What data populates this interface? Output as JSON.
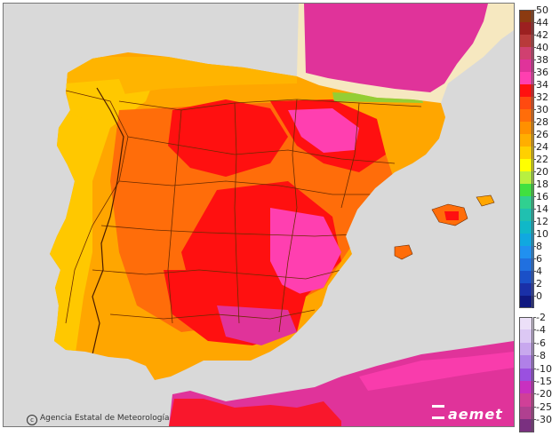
{
  "map": {
    "credit_text": "Agencia Estatal de Meteorología",
    "logo_text": "aemet",
    "colors": {
      "sea": "#d9d9d9",
      "france": "#f6e8c0",
      "extreme": "#e0339a",
      "hot": "#ff1010",
      "warm": "#ff6d0a",
      "mild": "#ffa600",
      "cool": "#ffc800",
      "mountain_green": "#66e04a",
      "borders": "#6b2b00"
    }
  },
  "legend": {
    "upper": [
      {
        "label": "50",
        "color": "#8b3a10"
      },
      {
        "label": "44",
        "color": "#9c2020"
      },
      {
        "label": "42",
        "color": "#b83a3a"
      },
      {
        "label": "40",
        "color": "#d04070"
      },
      {
        "label": "38",
        "color": "#e0339a"
      },
      {
        "label": "36",
        "color": "#ff3fb0"
      },
      {
        "label": "34",
        "color": "#ff1010"
      },
      {
        "label": "32",
        "color": "#ff4a10"
      },
      {
        "label": "30",
        "color": "#ff6d0a"
      },
      {
        "label": "28",
        "color": "#ff9000"
      },
      {
        "label": "26",
        "color": "#ffae00"
      },
      {
        "label": "24",
        "color": "#ffd000"
      },
      {
        "label": "22",
        "color": "#ffff00"
      },
      {
        "label": "20",
        "color": "#b8f040"
      },
      {
        "label": "18",
        "color": "#40e040"
      },
      {
        "label": "16",
        "color": "#30d090"
      },
      {
        "label": "14",
        "color": "#20c0b0"
      },
      {
        "label": "12",
        "color": "#10b8c8"
      },
      {
        "label": "10",
        "color": "#10a8e0"
      },
      {
        "label": "8",
        "color": "#2090f0"
      },
      {
        "label": "6",
        "color": "#2070e0"
      },
      {
        "label": "4",
        "color": "#1a50c8"
      },
      {
        "label": "2",
        "color": "#1a30a8"
      },
      {
        "label": "0",
        "color": "#101880"
      }
    ],
    "lower": [
      {
        "label": "-2",
        "color": "#ece0f8"
      },
      {
        "label": "-4",
        "color": "#dcc8f4"
      },
      {
        "label": "-6",
        "color": "#c8a8ee"
      },
      {
        "label": "-8",
        "color": "#b080e8"
      },
      {
        "label": "-10",
        "color": "#9a50e0"
      },
      {
        "label": "-15",
        "color": "#c830c0"
      },
      {
        "label": "-20",
        "color": "#d04098"
      },
      {
        "label": "-25",
        "color": "#b04090"
      },
      {
        "label": "-30",
        "color": "#7a3080"
      }
    ]
  }
}
